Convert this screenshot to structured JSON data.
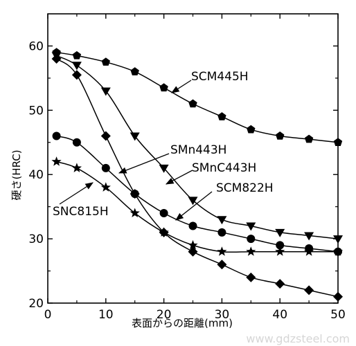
{
  "chart_data": {
    "type": "line",
    "title": "",
    "xlabel": "表面からの距離(mm)",
    "ylabel": "硬さ(HRC)",
    "xlim": [
      0,
      50
    ],
    "ylim": [
      20,
      65
    ],
    "xticks": [
      0,
      10,
      20,
      30,
      40,
      50
    ],
    "yticks": [
      20,
      30,
      40,
      50,
      60
    ],
    "grid": false,
    "legend": "none",
    "series": [
      {
        "name": "SCM445H",
        "marker": "pentagon",
        "x": [
          1.5,
          5,
          10,
          15,
          20,
          25,
          30,
          35,
          40,
          45,
          50
        ],
        "y": [
          59,
          58.5,
          57.5,
          56,
          53.5,
          51,
          49,
          47,
          46,
          45.5,
          45
        ]
      },
      {
        "name": "SMnC443H",
        "marker": "triangle-down",
        "x": [
          1.5,
          5,
          10,
          15,
          20,
          25,
          30,
          35,
          40,
          45,
          50
        ],
        "y": [
          58.5,
          57,
          53,
          46,
          41,
          36,
          33,
          32,
          31,
          30.5,
          30
        ]
      },
      {
        "name": "SMn443H",
        "marker": "diamond",
        "x": [
          1.5,
          5,
          10,
          15,
          20,
          25,
          30,
          35,
          40,
          45,
          50
        ],
        "y": [
          58,
          55.5,
          46,
          37,
          31,
          28,
          26,
          24,
          23,
          22,
          21
        ]
      },
      {
        "name": "SCM822H",
        "marker": "circle",
        "x": [
          1.5,
          5,
          10,
          15,
          20,
          25,
          30,
          35,
          40,
          45,
          50
        ],
        "y": [
          46,
          45,
          41,
          37,
          34,
          32,
          31,
          30,
          29,
          28.5,
          28
        ]
      },
      {
        "name": "SNC815H",
        "marker": "star",
        "x": [
          1.5,
          5,
          10,
          15,
          20,
          25,
          30,
          35,
          40,
          45,
          50
        ],
        "y": [
          42,
          41,
          38,
          34,
          31,
          29,
          28,
          28,
          28,
          28,
          28
        ]
      }
    ]
  },
  "watermark": "www.gdzsteel.com"
}
